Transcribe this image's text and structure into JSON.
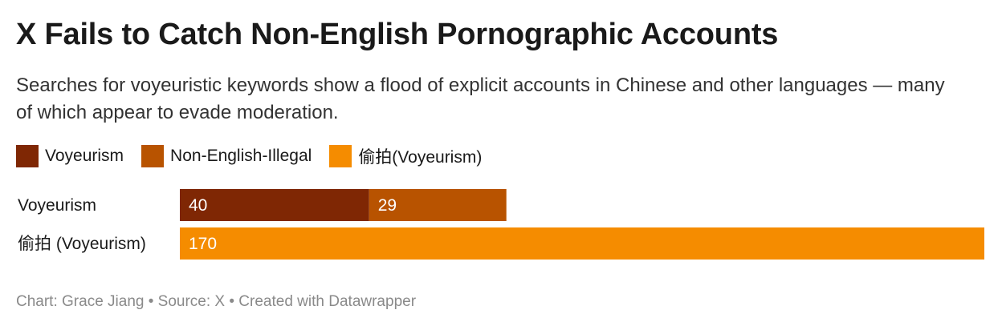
{
  "title": "X Fails to Catch Non-English Pornographic Accounts",
  "subtitle": "Searches for voyeuristic keywords show a flood of explicit accounts in Chinese and other languages — many of which appear to evade moderation.",
  "footer": "Chart: Grace Jiang • Source: X • Created with Datawrapper",
  "colors": {
    "voyeurism": "#7f2704",
    "non_english_illegal": "#b85300",
    "toupai": "#f58c00"
  },
  "chart_data": {
    "type": "bar",
    "orientation": "horizontal",
    "stacked": true,
    "title": "X Fails to Catch Non-English Pornographic Accounts",
    "categories": [
      "Voyeurism",
      "偷拍 (Voyeurism)"
    ],
    "series": [
      {
        "name": "Voyeurism",
        "color": "#7f2704",
        "values": [
          40,
          0
        ]
      },
      {
        "name": "Non-English-Illegal",
        "color": "#b85300",
        "values": [
          29,
          0
        ]
      },
      {
        "name": "偷拍(Voyeurism)",
        "color": "#f58c00",
        "values": [
          0,
          170
        ]
      }
    ],
    "xlim": [
      0,
      170
    ],
    "grid": false,
    "legend": "top-left",
    "data_labels": true
  }
}
